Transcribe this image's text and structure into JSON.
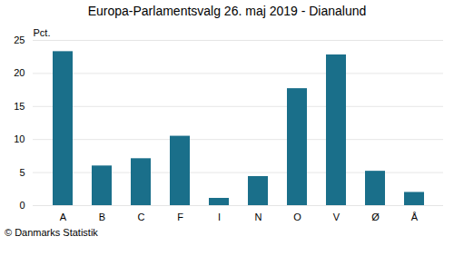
{
  "chart_data": {
    "type": "bar",
    "title": "Europa-Parlamentsvalg 26. maj 2019 - Dianalund",
    "categories": [
      "A",
      "B",
      "C",
      "F",
      "I",
      "N",
      "O",
      "V",
      "Ø",
      "Å"
    ],
    "values": [
      23.3,
      6.0,
      7.1,
      10.5,
      1.1,
      4.4,
      17.7,
      22.8,
      5.2,
      2.0
    ],
    "color": "#1a6f8a",
    "ylabel": "Pct.",
    "ylim": [
      0,
      25
    ],
    "yticks": [
      0,
      5,
      10,
      15,
      20,
      25
    ],
    "grid": true,
    "caption": "© Danmarks Statistik"
  }
}
